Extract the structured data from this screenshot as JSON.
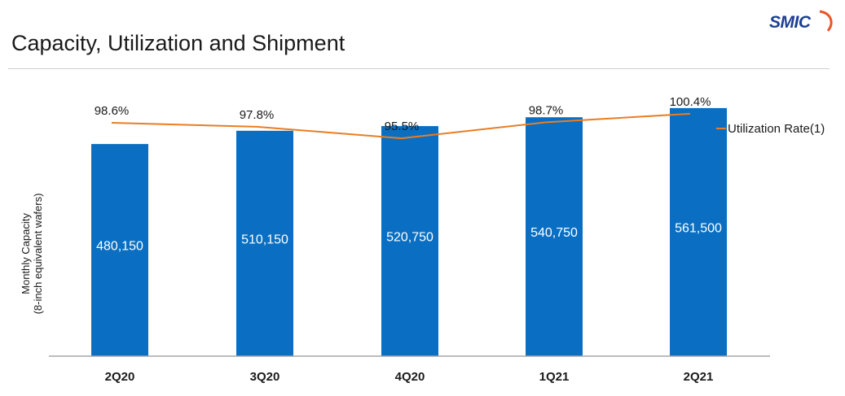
{
  "page": {
    "title": "Capacity, Utilization and Shipment"
  },
  "logo": {
    "text": "SMIC"
  },
  "colors": {
    "bar": "#0a6fc2",
    "line": "#ea7d21",
    "axis": "#a6a6a6",
    "brand": "#1b3f94"
  },
  "chart_data": {
    "type": "bar",
    "categories": [
      "2Q20",
      "3Q20",
      "4Q20",
      "1Q21",
      "2Q21"
    ],
    "series": [
      {
        "values": [
          480150,
          510150,
          520750,
          540750,
          561500
        ],
        "data_labels": [
          "480,150",
          "510,150",
          "520,750",
          "540,750",
          "561,500"
        ]
      },
      {
        "name": "Utilization Rate(1)",
        "type": "line",
        "values": [
          98.6,
          97.8,
          95.5,
          98.7,
          100.4
        ],
        "data_labels": [
          "98.6%",
          "97.8%",
          "95.5%",
          "98.7%",
          "100.4%"
        ]
      }
    ],
    "ylabel": [
      "Monthly Capacity",
      "(8-inch equivalent wafers)"
    ],
    "ylim": [
      0,
      600000
    ],
    "legend": "top-right",
    "grid": false
  }
}
